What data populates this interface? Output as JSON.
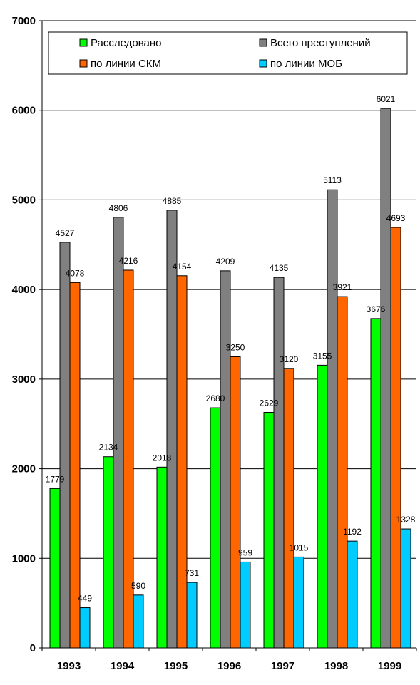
{
  "chart_data": {
    "type": "bar",
    "categories": [
      "1993",
      "1994",
      "1995",
      "1996",
      "1997",
      "1998",
      "1999"
    ],
    "series": [
      {
        "name": "Расследовано",
        "color": "#00ff00",
        "values": [
          1779,
          2134,
          2018,
          2680,
          2629,
          3155,
          3676
        ]
      },
      {
        "name": "Всего преступлений",
        "color": "#808080",
        "values": [
          4527,
          4806,
          4885,
          4209,
          4135,
          5113,
          6021
        ]
      },
      {
        "name": "по линии СКМ",
        "color": "#ff6600",
        "values": [
          4078,
          4216,
          4154,
          3250,
          3120,
          3921,
          4693
        ]
      },
      {
        "name": "по линии МОБ",
        "color": "#00ccff",
        "values": [
          449,
          590,
          731,
          959,
          1015,
          1192,
          1328
        ]
      }
    ],
    "ylim": [
      0,
      7000
    ],
    "yticks": [
      0,
      1000,
      2000,
      3000,
      4000,
      5000,
      6000,
      7000
    ],
    "ytick_labels": [
      "0",
      "1000",
      "2000",
      "3000",
      "4000",
      "5000",
      "6000",
      "7000"
    ],
    "grid": true,
    "legend_position": "top",
    "legend_order": [
      0,
      1,
      2,
      3
    ]
  }
}
